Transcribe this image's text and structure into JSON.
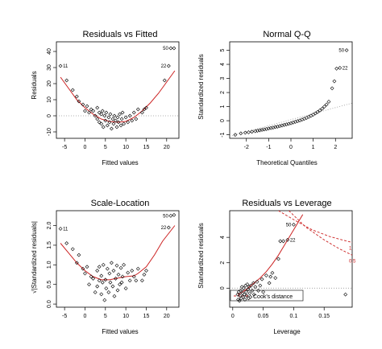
{
  "colors": {
    "points": "#000000",
    "smooth": "#cc2222",
    "reference": "#999999",
    "cook": "#cc2222"
  },
  "chart_data": [
    {
      "id": "rvf",
      "type": "scatter",
      "title": "Residuals vs Fitted",
      "xlabel": "Fitted values",
      "ylabel": "Residuals",
      "xlim": [
        -7,
        23
      ],
      "ylim": [
        -14,
        46
      ],
      "xticks": [
        -5,
        0,
        5,
        10,
        15,
        20
      ],
      "yticks": [
        -10,
        0,
        10,
        20,
        30,
        40
      ],
      "reference": {
        "type": "hline",
        "y": 0,
        "style": "dotted"
      },
      "points": [
        [
          -6.0,
          31
        ],
        [
          -4.5,
          22
        ],
        [
          -3,
          16
        ],
        [
          -2,
          12
        ],
        [
          -1.5,
          9
        ],
        [
          -0.5,
          7
        ],
        [
          0,
          3
        ],
        [
          0.5,
          6
        ],
        [
          1.0,
          2
        ],
        [
          1.5,
          4
        ],
        [
          2.0,
          3
        ],
        [
          2.5,
          0
        ],
        [
          3.0,
          5
        ],
        [
          3.0,
          -2
        ],
        [
          3.5,
          2
        ],
        [
          3.5,
          -4
        ],
        [
          4.0,
          1
        ],
        [
          4.0,
          -5
        ],
        [
          4.3,
          3
        ],
        [
          4.5,
          -7
        ],
        [
          4.8,
          0
        ],
        [
          5.0,
          -3
        ],
        [
          5.2,
          2
        ],
        [
          5.5,
          -6
        ],
        [
          5.8,
          -1
        ],
        [
          6.0,
          -4
        ],
        [
          6.2,
          1
        ],
        [
          6.5,
          -8
        ],
        [
          6.8,
          -2
        ],
        [
          7.0,
          -5
        ],
        [
          7.2,
          0
        ],
        [
          7.5,
          -3
        ],
        [
          7.8,
          -7
        ],
        [
          8.0,
          -1
        ],
        [
          8.2,
          -4
        ],
        [
          8.5,
          1
        ],
        [
          8.8,
          -6
        ],
        [
          9.0,
          -2
        ],
        [
          9.2,
          2
        ],
        [
          9.5,
          -5
        ],
        [
          10.0,
          -1
        ],
        [
          10.5,
          -4
        ],
        [
          11.0,
          0
        ],
        [
          11.5,
          -3
        ],
        [
          12.0,
          2
        ],
        [
          12.5,
          -2
        ],
        [
          13.0,
          4
        ],
        [
          14.0,
          2
        ],
        [
          14.5,
          4
        ],
        [
          15.0,
          5
        ],
        [
          19.5,
          22
        ],
        [
          20.5,
          31
        ],
        [
          21.0,
          42
        ],
        [
          21.8,
          42
        ]
      ],
      "smooth": [
        [
          -6,
          24
        ],
        [
          -4,
          17
        ],
        [
          -2,
          10
        ],
        [
          0,
          5
        ],
        [
          2,
          1
        ],
        [
          4,
          -2
        ],
        [
          6,
          -3.5
        ],
        [
          8,
          -4
        ],
        [
          10,
          -3.5
        ],
        [
          12,
          -1
        ],
        [
          14,
          3
        ],
        [
          16,
          8
        ],
        [
          18,
          14
        ],
        [
          20,
          21
        ],
        [
          22,
          28
        ]
      ],
      "point_labels": [
        {
          "text": "11",
          "x": -6.0,
          "y": 31,
          "side": "right"
        },
        {
          "text": "22",
          "x": 20.5,
          "y": 31,
          "side": "left"
        },
        {
          "text": "50",
          "x": 21.0,
          "y": 42,
          "side": "left"
        }
      ]
    },
    {
      "id": "qq",
      "type": "scatter",
      "title": "Normal Q-Q",
      "xlabel": "Theoretical Quantiles",
      "ylabel": "Standardized residuals",
      "xlim": [
        -2.75,
        2.75
      ],
      "ylim": [
        -1.25,
        5.6
      ],
      "xticks": [
        -2,
        -1,
        0,
        1,
        2
      ],
      "yticks": [
        -1,
        0,
        1,
        2,
        3,
        4,
        5
      ],
      "reference": {
        "type": "line",
        "from": [
          -2.75,
          -1.1
        ],
        "to": [
          2.75,
          1.25
        ],
        "style": "dotted"
      },
      "points": [
        [
          -2.5,
          -1.0
        ],
        [
          -2.25,
          -0.9
        ],
        [
          -2.05,
          -0.85
        ],
        [
          -1.9,
          -0.82
        ],
        [
          -1.75,
          -0.78
        ],
        [
          -1.6,
          -0.74
        ],
        [
          -1.5,
          -0.71
        ],
        [
          -1.4,
          -0.68
        ],
        [
          -1.3,
          -0.65
        ],
        [
          -1.2,
          -0.62
        ],
        [
          -1.1,
          -0.59
        ],
        [
          -1.0,
          -0.55
        ],
        [
          -0.9,
          -0.52
        ],
        [
          -0.8,
          -0.49
        ],
        [
          -0.7,
          -0.45
        ],
        [
          -0.6,
          -0.42
        ],
        [
          -0.5,
          -0.38
        ],
        [
          -0.4,
          -0.34
        ],
        [
          -0.3,
          -0.3
        ],
        [
          -0.2,
          -0.26
        ],
        [
          -0.1,
          -0.22
        ],
        [
          0.0,
          -0.18
        ],
        [
          0.1,
          -0.13
        ],
        [
          0.2,
          -0.08
        ],
        [
          0.3,
          -0.03
        ],
        [
          0.4,
          0.02
        ],
        [
          0.5,
          0.08
        ],
        [
          0.6,
          0.14
        ],
        [
          0.7,
          0.2
        ],
        [
          0.8,
          0.27
        ],
        [
          0.9,
          0.35
        ],
        [
          1.0,
          0.43
        ],
        [
          1.1,
          0.52
        ],
        [
          1.2,
          0.62
        ],
        [
          1.3,
          0.73
        ],
        [
          1.4,
          0.85
        ],
        [
          1.5,
          1.0
        ],
        [
          1.6,
          1.15
        ],
        [
          1.7,
          1.35
        ],
        [
          1.85,
          2.3
        ],
        [
          1.95,
          2.8
        ],
        [
          2.05,
          3.7
        ],
        [
          2.2,
          3.75
        ],
        [
          2.5,
          5.0
        ]
      ],
      "point_labels": [
        {
          "text": "50",
          "x": 2.5,
          "y": 5.0,
          "side": "left"
        },
        {
          "text": "22",
          "x": 2.2,
          "y": 3.75,
          "side": "right"
        }
      ]
    },
    {
      "id": "sl",
      "type": "scatter",
      "title": "Scale-Location",
      "xlabel": "Fitted values",
      "ylabel": "√|Standardized residuals|",
      "xlim": [
        -7,
        23
      ],
      "ylim": [
        -0.08,
        2.38
      ],
      "xticks": [
        -5,
        0,
        5,
        10,
        15,
        20
      ],
      "yticks": [
        0.0,
        0.5,
        1.0,
        1.5,
        2.0
      ],
      "points": [
        [
          -6.0,
          1.92
        ],
        [
          -4.5,
          1.55
        ],
        [
          -3,
          1.4
        ],
        [
          -2,
          1.05
        ],
        [
          -1.5,
          1.25
        ],
        [
          -0.5,
          0.9
        ],
        [
          0,
          0.78
        ],
        [
          0.5,
          0.95
        ],
        [
          1.0,
          0.5
        ],
        [
          1.5,
          0.7
        ],
        [
          2.0,
          0.65
        ],
        [
          2.5,
          0.3
        ],
        [
          3.0,
          0.85
        ],
        [
          3.0,
          0.45
        ],
        [
          3.5,
          0.6
        ],
        [
          3.5,
          0.95
        ],
        [
          4.0,
          0.25
        ],
        [
          4.0,
          0.72
        ],
        [
          4.3,
          0.55
        ],
        [
          4.5,
          1.0
        ],
        [
          4.8,
          0.1
        ],
        [
          5.0,
          0.62
        ],
        [
          5.2,
          0.4
        ],
        [
          5.5,
          0.9
        ],
        [
          5.8,
          0.3
        ],
        [
          6.0,
          0.78
        ],
        [
          6.2,
          0.55
        ],
        [
          6.5,
          1.05
        ],
        [
          6.8,
          0.45
        ],
        [
          7.0,
          0.85
        ],
        [
          7.2,
          0.2
        ],
        [
          7.5,
          0.65
        ],
        [
          7.8,
          0.98
        ],
        [
          8.0,
          0.35
        ],
        [
          8.2,
          0.75
        ],
        [
          8.5,
          0.5
        ],
        [
          8.8,
          0.92
        ],
        [
          9.0,
          0.55
        ],
        [
          9.2,
          0.7
        ],
        [
          9.5,
          1.0
        ],
        [
          10.0,
          0.4
        ],
        [
          10.5,
          0.8
        ],
        [
          11.0,
          0.6
        ],
        [
          11.5,
          0.85
        ],
        [
          12.0,
          0.7
        ],
        [
          12.5,
          0.6
        ],
        [
          13.0,
          0.9
        ],
        [
          14.0,
          0.6
        ],
        [
          14.5,
          0.75
        ],
        [
          15.0,
          0.85
        ],
        [
          20.5,
          1.95
        ],
        [
          21.0,
          2.25
        ],
        [
          21.8,
          2.27
        ]
      ],
      "smooth": [
        [
          -6,
          1.55
        ],
        [
          -4,
          1.3
        ],
        [
          -2,
          1.05
        ],
        [
          0,
          0.85
        ],
        [
          2,
          0.7
        ],
        [
          4,
          0.62
        ],
        [
          6,
          0.62
        ],
        [
          8,
          0.66
        ],
        [
          10,
          0.7
        ],
        [
          12,
          0.72
        ],
        [
          13,
          0.78
        ],
        [
          15,
          0.95
        ],
        [
          17,
          1.25
        ],
        [
          19,
          1.6
        ],
        [
          22,
          2.0
        ]
      ],
      "point_labels": [
        {
          "text": "11",
          "x": -6.0,
          "y": 1.92,
          "side": "right"
        },
        {
          "text": "22",
          "x": 20.5,
          "y": 1.95,
          "side": "left"
        },
        {
          "text": "50",
          "x": 21.0,
          "y": 2.25,
          "side": "left"
        }
      ]
    },
    {
      "id": "rvl",
      "type": "scatter",
      "title": "Residuals vs Leverage",
      "xlabel": "Leverage",
      "ylabel": "Standardized residuals",
      "xlim": [
        -0.005,
        0.196
      ],
      "ylim": [
        -1.5,
        6.1
      ],
      "xticks": [
        0.0,
        0.05,
        0.1,
        0.15
      ],
      "yticks": [
        0,
        2,
        4
      ],
      "reference": {
        "type": "hline",
        "y": 0,
        "style": "dotted"
      },
      "points": [
        [
          0.008,
          -0.5
        ],
        [
          0.009,
          -0.9
        ],
        [
          0.01,
          -0.3
        ],
        [
          0.011,
          -1.0
        ],
        [
          0.012,
          -0.6
        ],
        [
          0.013,
          -0.2
        ],
        [
          0.014,
          -0.8
        ],
        [
          0.015,
          0.1
        ],
        [
          0.016,
          -0.4
        ],
        [
          0.017,
          -0.7
        ],
        [
          0.018,
          0.0
        ],
        [
          0.019,
          -0.5
        ],
        [
          0.02,
          -0.9
        ],
        [
          0.021,
          0.2
        ],
        [
          0.022,
          -0.3
        ],
        [
          0.023,
          -0.6
        ],
        [
          0.024,
          0.3
        ],
        [
          0.025,
          -0.1
        ],
        [
          0.026,
          -0.8
        ],
        [
          0.027,
          0.1
        ],
        [
          0.028,
          -0.4
        ],
        [
          0.029,
          -0.7
        ],
        [
          0.03,
          0.2
        ],
        [
          0.032,
          -0.2
        ],
        [
          0.034,
          0.4
        ],
        [
          0.035,
          -0.5
        ],
        [
          0.037,
          0.1
        ],
        [
          0.04,
          0.5
        ],
        [
          0.042,
          -0.2
        ],
        [
          0.045,
          0.2
        ],
        [
          0.048,
          0.7
        ],
        [
          0.05,
          -0.3
        ],
        [
          0.055,
          1.0
        ],
        [
          0.06,
          0.4
        ],
        [
          0.062,
          0.9
        ],
        [
          0.065,
          1.2
        ],
        [
          0.07,
          0.8
        ],
        [
          0.075,
          2.3
        ],
        [
          0.078,
          3.7
        ],
        [
          0.083,
          3.7
        ],
        [
          0.09,
          3.8
        ],
        [
          0.1,
          5.0
        ],
        [
          0.185,
          -0.5
        ]
      ],
      "smooth": [
        [
          0.008,
          -0.5
        ],
        [
          0.015,
          -0.35
        ],
        [
          0.025,
          0.0
        ],
        [
          0.035,
          0.4
        ],
        [
          0.045,
          0.8
        ],
        [
          0.055,
          1.3
        ],
        [
          0.065,
          1.9
        ],
        [
          0.075,
          2.6
        ],
        [
          0.085,
          3.4
        ],
        [
          0.1,
          4.6
        ],
        [
          0.115,
          5.8
        ]
      ],
      "point_labels": [
        {
          "text": "50",
          "x": 0.1,
          "y": 5.0,
          "side": "left"
        },
        {
          "text": "22",
          "x": 0.09,
          "y": 3.8,
          "side": "right"
        }
      ],
      "cook_contours": [
        {
          "label": "1",
          "points": [
            [
              0.075,
              6.1
            ],
            [
              0.1,
              5.4
            ],
            [
              0.13,
              4.6
            ],
            [
              0.16,
              4.05
            ],
            [
              0.196,
              3.6
            ]
          ]
        },
        {
          "label": "0.5",
          "points": [
            [
              0.092,
              6.1
            ],
            [
              0.12,
              4.8
            ],
            [
              0.15,
              3.8
            ],
            [
              0.175,
              3.1
            ],
            [
              0.196,
              2.6
            ]
          ]
        }
      ],
      "cook_legend": "Cook's distance"
    }
  ]
}
